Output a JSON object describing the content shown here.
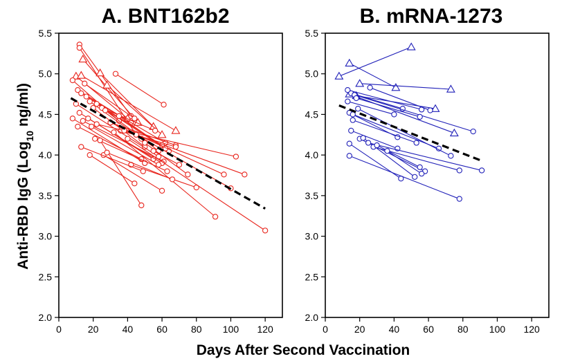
{
  "figure": {
    "ylabel_main": "Anti-RBD IgG (Log",
    "ylabel_sub": "10",
    "ylabel_tail": " ng/ml)",
    "xlabel": "Days After Second Vaccination"
  },
  "chart_data": [
    {
      "type": "line",
      "title": "A. BNT162b2",
      "color": "#e8231b",
      "xlim": [
        0,
        130
      ],
      "ylim": [
        2.0,
        5.5
      ],
      "xticks": [
        0,
        20,
        40,
        60,
        80,
        100,
        120
      ],
      "yticks": [
        2.0,
        2.5,
        3.0,
        3.5,
        4.0,
        4.5,
        5.0,
        5.5
      ],
      "trend": [
        [
          7,
          4.7
        ],
        [
          120,
          3.34
        ]
      ],
      "subjects": [
        {
          "marker": "circle",
          "points": [
            [
              12,
              5.36
            ],
            [
              42,
              4.48
            ]
          ]
        },
        {
          "marker": "circle",
          "points": [
            [
              12,
              5.32
            ],
            [
              45,
              4.25
            ]
          ]
        },
        {
          "marker": "triangle",
          "points": [
            [
              10,
              4.97
            ],
            [
              40,
              4.45
            ]
          ]
        },
        {
          "marker": "triangle",
          "points": [
            [
              13,
              4.98
            ],
            [
              68,
              4.3
            ]
          ]
        },
        {
          "marker": "triangle",
          "points": [
            [
              14,
              5.18
            ],
            [
              46,
              4.4
            ]
          ]
        },
        {
          "marker": "triangle",
          "points": [
            [
              24,
              5.01
            ],
            [
              55,
              4.35
            ]
          ]
        },
        {
          "marker": "triangle",
          "points": [
            [
              28,
              4.86
            ],
            [
              60,
              4.25
            ]
          ]
        },
        {
          "marker": "circle",
          "points": [
            [
              8,
              4.92
            ],
            [
              35,
              4.42
            ]
          ]
        },
        {
          "marker": "circle",
          "points": [
            [
              11,
              4.8
            ],
            [
              42,
              4.4
            ]
          ]
        },
        {
          "marker": "circle",
          "points": [
            [
              13,
              4.76
            ],
            [
              62,
              4.15
            ]
          ]
        },
        {
          "marker": "circle",
          "points": [
            [
              15,
              4.88
            ],
            [
              44,
              4.45
            ]
          ]
        },
        {
          "marker": "circle",
          "points": [
            [
              16,
              4.72
            ],
            [
              60,
              4.12
            ]
          ]
        },
        {
          "marker": "circle",
          "points": [
            [
              18,
              4.66
            ],
            [
              48,
              4.2
            ]
          ]
        },
        {
          "marker": "circle",
          "points": [
            [
              20,
              4.58
            ],
            [
              50,
              4.1
            ]
          ]
        },
        {
          "marker": "circle",
          "points": [
            [
              22,
              4.63
            ],
            [
              64,
              4.05
            ]
          ]
        },
        {
          "marker": "circle",
          "points": [
            [
              25,
              4.58
            ],
            [
              56,
              4.3
            ]
          ]
        },
        {
          "marker": "circle",
          "points": [
            [
              27,
              4.55
            ],
            [
              58,
              4.05
            ]
          ]
        },
        {
          "marker": "circle",
          "points": [
            [
              30,
              4.4
            ],
            [
              68,
              4.12
            ]
          ]
        },
        {
          "marker": "circle",
          "points": [
            [
              33,
              5.0
            ],
            [
              61,
              4.62
            ]
          ]
        },
        {
          "marker": "circle",
          "points": [
            [
              35,
              4.48
            ],
            [
              62,
              4.08
            ]
          ]
        },
        {
          "marker": "circle",
          "points": [
            [
              36,
              4.3
            ],
            [
              68,
              4.1
            ]
          ]
        },
        {
          "marker": "circle",
          "points": [
            [
              10,
              4.63
            ],
            [
              58,
              3.98
            ]
          ]
        },
        {
          "marker": "circle",
          "points": [
            [
              12,
              4.52
            ],
            [
              55,
              3.95
            ]
          ]
        },
        {
          "marker": "circle",
          "points": [
            [
              14,
              4.42
            ],
            [
              61,
              3.92
            ]
          ]
        },
        {
          "marker": "circle",
          "points": [
            [
              11,
              4.35
            ],
            [
              48,
              3.95
            ]
          ]
        },
        {
          "marker": "circle",
          "points": [
            [
              17,
              4.45
            ],
            [
              60,
              3.9
            ]
          ]
        },
        {
          "marker": "circle",
          "points": [
            [
              19,
              4.35
            ],
            [
              58,
              3.88
            ]
          ]
        },
        {
          "marker": "circle",
          "points": [
            [
              8,
              4.45
            ],
            [
              50,
              3.9
            ]
          ]
        },
        {
          "marker": "circle",
          "points": [
            [
              21,
              4.2
            ],
            [
              63,
              3.8
            ]
          ]
        },
        {
          "marker": "circle",
          "points": [
            [
              26,
              4.0
            ],
            [
              60,
              3.56
            ]
          ]
        },
        {
          "marker": "circle",
          "points": [
            [
              24,
              4.18
            ],
            [
              48,
              3.38
            ]
          ]
        },
        {
          "marker": "circle",
          "points": [
            [
              22,
              4.38
            ],
            [
              103,
              3.98
            ]
          ]
        },
        {
          "marker": "circle",
          "points": [
            [
              30,
              4.4
            ],
            [
              96,
              3.76
            ]
          ]
        },
        {
          "marker": "circle",
          "points": [
            [
              38,
              4.3
            ],
            [
              108,
              3.76
            ]
          ]
        },
        {
          "marker": "circle",
          "points": [
            [
              32,
              4.28
            ],
            [
              91,
              3.24
            ]
          ]
        },
        {
          "marker": "circle",
          "points": [
            [
              45,
              4.25
            ],
            [
              100,
              3.59
            ]
          ]
        },
        {
          "marker": "circle",
          "points": [
            [
              42,
              3.88
            ],
            [
              80,
              3.6
            ]
          ]
        },
        {
          "marker": "circle",
          "points": [
            [
              50,
              4.15
            ],
            [
              75,
              3.76
            ]
          ]
        },
        {
          "marker": "circle",
          "points": [
            [
              18,
              4.0
            ],
            [
              44,
              3.65
            ]
          ]
        },
        {
          "marker": "circle",
          "points": [
            [
              13,
              4.1
            ],
            [
              49,
              3.8
            ]
          ]
        },
        {
          "marker": "circle",
          "points": [
            [
              28,
              4.03
            ],
            [
              66,
              3.7
            ]
          ]
        },
        {
          "marker": "circle",
          "points": [
            [
              40,
              4.2
            ],
            [
              120,
              3.07
            ]
          ]
        },
        {
          "marker": "circle",
          "points": [
            [
              55,
              4.05
            ],
            [
              70,
              3.88
            ]
          ]
        }
      ]
    },
    {
      "type": "line",
      "title": "B. mRNA-1273",
      "color": "#1f1fb8",
      "xlim": [
        0,
        130
      ],
      "ylim": [
        2.0,
        5.5
      ],
      "xticks": [
        0,
        20,
        40,
        60,
        80,
        100,
        120
      ],
      "yticks": [
        2.0,
        2.5,
        3.0,
        3.5,
        4.0,
        4.5,
        5.0,
        5.5
      ],
      "trend": [
        [
          8,
          4.61
        ],
        [
          92,
          3.92
        ]
      ],
      "subjects": [
        {
          "marker": "triangle",
          "points": [
            [
              8,
              4.97
            ],
            [
              50,
              5.33
            ]
          ]
        },
        {
          "marker": "triangle",
          "points": [
            [
              14,
              5.13
            ],
            [
              41,
              4.83
            ]
          ]
        },
        {
          "marker": "triangle",
          "points": [
            [
              20,
              4.88
            ],
            [
              73,
              4.81
            ]
          ]
        },
        {
          "marker": "triangle",
          "points": [
            [
              18,
              4.73
            ],
            [
              64,
              4.57
            ]
          ]
        },
        {
          "marker": "triangle",
          "points": [
            [
              14,
              4.75
            ],
            [
              75,
              4.27
            ]
          ]
        },
        {
          "marker": "circle",
          "points": [
            [
              13,
              4.8
            ],
            [
              56,
              4.56
            ]
          ]
        },
        {
          "marker": "circle",
          "points": [
            [
              15,
              4.76
            ],
            [
              45,
              4.57
            ]
          ]
        },
        {
          "marker": "circle",
          "points": [
            [
              17,
              4.74
            ],
            [
              86,
              4.29
            ]
          ]
        },
        {
          "marker": "circle",
          "points": [
            [
              18,
              4.7
            ],
            [
              55,
              4.47
            ]
          ]
        },
        {
          "marker": "circle",
          "points": [
            [
              13,
              4.66
            ],
            [
              40,
              4.5
            ]
          ]
        },
        {
          "marker": "circle",
          "points": [
            [
              14,
              4.52
            ],
            [
              42,
              4.22
            ]
          ]
        },
        {
          "marker": "circle",
          "points": [
            [
              26,
              4.83
            ],
            [
              61,
              4.55
            ]
          ]
        },
        {
          "marker": "circle",
          "points": [
            [
              16,
              4.5
            ],
            [
              66,
              4.08
            ]
          ]
        },
        {
          "marker": "circle",
          "points": [
            [
              19,
              4.57
            ],
            [
              73,
              3.99
            ]
          ]
        },
        {
          "marker": "circle",
          "points": [
            [
              16,
              4.43
            ],
            [
              53,
              4.15
            ]
          ]
        },
        {
          "marker": "circle",
          "points": [
            [
              15,
              4.3
            ],
            [
              42,
              4.08
            ]
          ]
        },
        {
          "marker": "circle",
          "points": [
            [
              20,
              4.2
            ],
            [
              58,
              3.8
            ]
          ]
        },
        {
          "marker": "circle",
          "points": [
            [
              22,
              4.21
            ],
            [
              52,
              3.73
            ]
          ]
        },
        {
          "marker": "circle",
          "points": [
            [
              14,
              4.14
            ],
            [
              44,
              3.71
            ]
          ]
        },
        {
          "marker": "circle",
          "points": [
            [
              25,
              4.15
            ],
            [
              91,
              3.81
            ]
          ]
        },
        {
          "marker": "circle",
          "points": [
            [
              28,
              4.1
            ],
            [
              78,
              3.81
            ]
          ]
        },
        {
          "marker": "circle",
          "points": [
            [
              30,
              4.12
            ],
            [
              55,
              3.85
            ]
          ]
        },
        {
          "marker": "circle",
          "points": [
            [
              14,
              3.99
            ],
            [
              78,
              3.46
            ]
          ]
        },
        {
          "marker": "circle",
          "points": [
            [
              36,
              4.05
            ],
            [
              56,
              3.77
            ]
          ]
        }
      ]
    }
  ]
}
